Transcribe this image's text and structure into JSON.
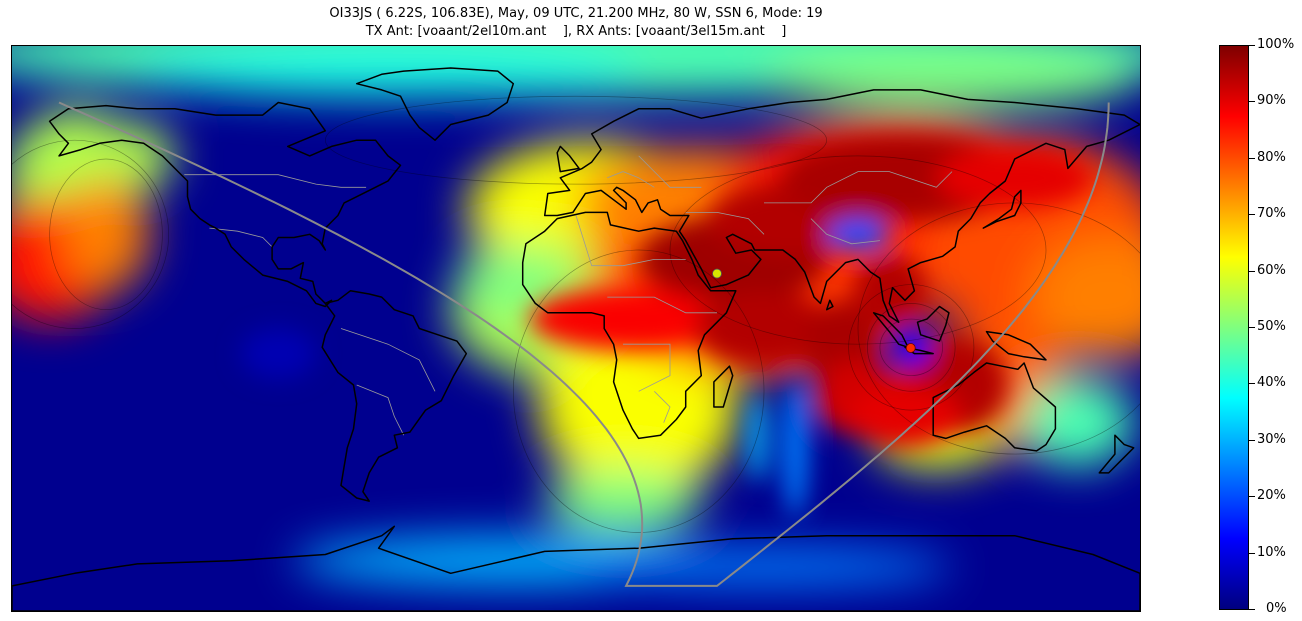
{
  "title": {
    "line1": "OI33JS ( 6.22S, 106.83E), May, 09 UTC, 21.200 MHz, 80 W, SSN 6, Mode: 19",
    "line2": "TX Ant: [voaant/2el10m.ant    ], RX Ants: [voaant/3el15m.ant    ]"
  },
  "map": {
    "projection": "equirectangular",
    "colormap": "jet",
    "transmitter": {
      "lat": -6.22,
      "lon": 106.83,
      "marker_color": "#ff2a00"
    },
    "receiver_marker": {
      "lat": 17.5,
      "lon": 45.0,
      "marker_color": "#d8e600"
    },
    "terminator_color": "#8a8a8a",
    "coastline_color": "#000000",
    "border_color": "#9a9a9a"
  },
  "colorbar": {
    "min": 0,
    "max": 100,
    "unit": "%",
    "tick_labels": [
      "0%",
      "10%",
      "20%",
      "30%",
      "40%",
      "50%",
      "60%",
      "70%",
      "80%",
      "90%",
      "100%"
    ]
  },
  "colors": {
    "jet_stops": [
      "#00007f",
      "#0000ff",
      "#007fff",
      "#00ffff",
      "#7fff7f",
      "#ffff00",
      "#ff7f00",
      "#ff0000",
      "#7f0000"
    ]
  }
}
